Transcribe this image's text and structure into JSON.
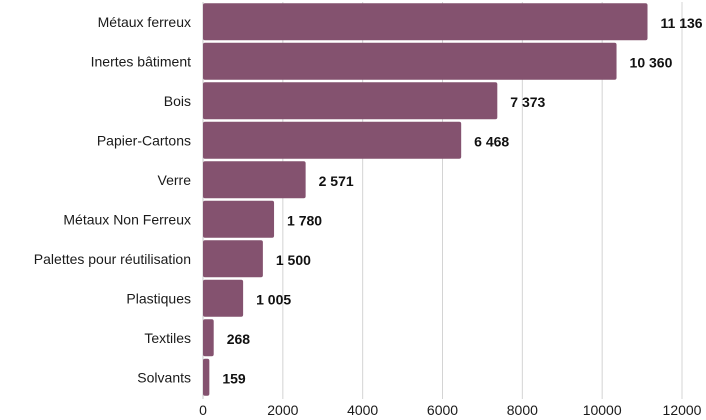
{
  "chart_data": {
    "type": "bar",
    "orientation": "horizontal",
    "categories": [
      "Métaux ferreux",
      "Inertes bâtiment",
      "Bois",
      "Papier-Cartons",
      "Verre",
      "Métaux Non Ferreux",
      "Palettes pour réutilisation",
      "Plastiques",
      "Textiles",
      "Solvants"
    ],
    "values": [
      11136,
      10360,
      7373,
      6468,
      2571,
      1780,
      1500,
      1005,
      268,
      159
    ],
    "value_labels": [
      "11 136",
      "10 360",
      "7 373",
      "6 468",
      "2 571",
      "1 780",
      "1 500",
      "1 005",
      "268",
      "159"
    ],
    "xlim": [
      0,
      12000
    ],
    "x_ticks": [
      0,
      2000,
      4000,
      6000,
      8000,
      10000,
      12000
    ],
    "x_tick_labels": [
      "0",
      "2000",
      "4000",
      "6000",
      "8000",
      "10000",
      "12000"
    ],
    "title": "",
    "xlabel": "",
    "ylabel": "",
    "grid": "vertical",
    "legend": "none",
    "colors": {
      "bar": "#84526f"
    }
  }
}
